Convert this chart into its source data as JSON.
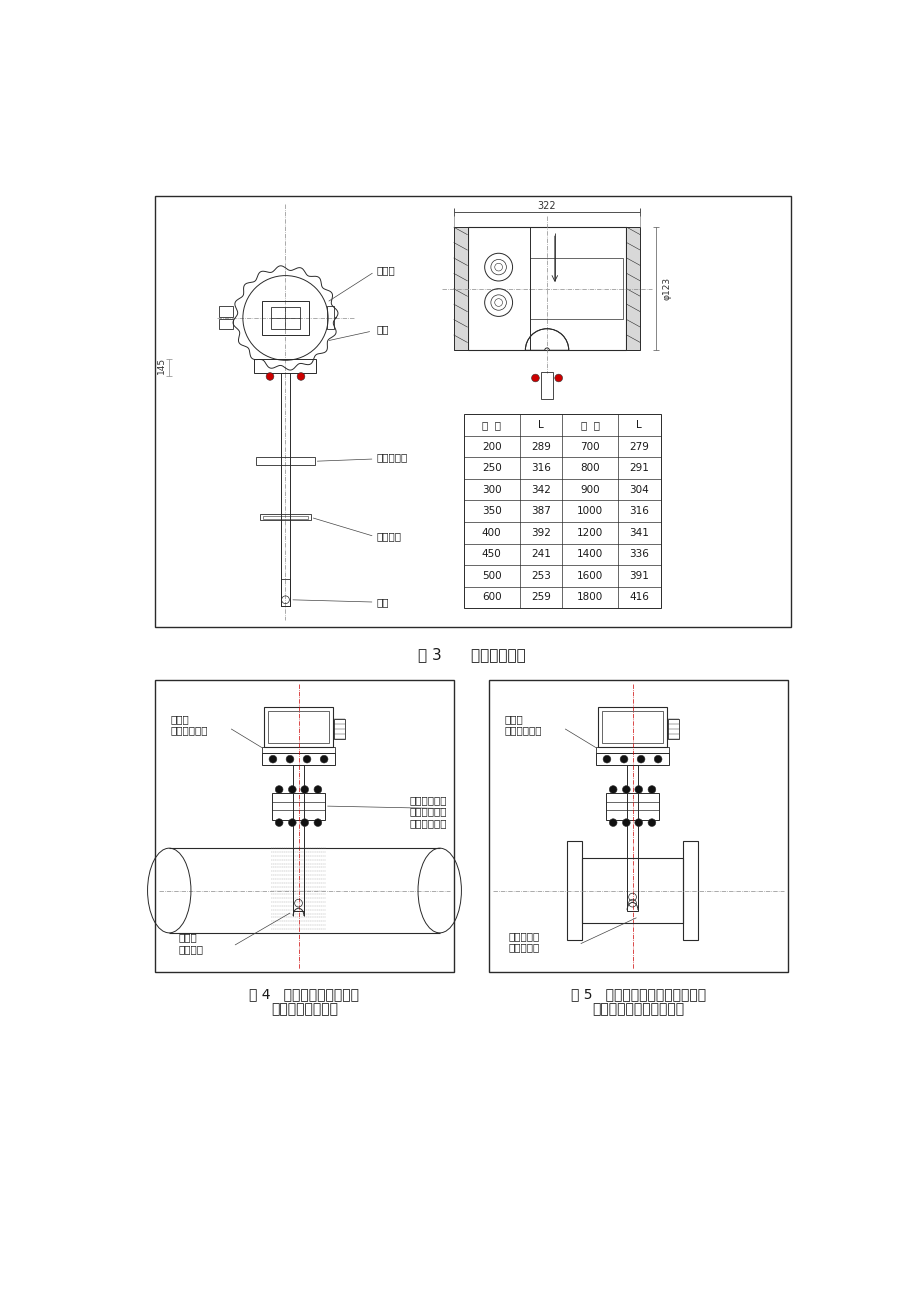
{
  "page_bg": "#ffffff",
  "fig3_caption": "图 3      一体型流量计",
  "fig4_caption_line1": "图 4   传感器（或一体型）",
  "fig4_caption_line2": "安装在用户管道上",
  "fig5_caption_line1": "图 5   传感器（或一体型）安装在",
  "fig5_caption_line2": "生产厂提供的标准短管上",
  "table_data": [
    [
      "口  径",
      "L",
      "口  径",
      "L"
    ],
    [
      "200",
      "289",
      "700",
      "279"
    ],
    [
      "250",
      "316",
      "800",
      "291"
    ],
    [
      "300",
      "342",
      "900",
      "304"
    ],
    [
      "350",
      "387",
      "1000",
      "316"
    ],
    [
      "400",
      "392",
      "1200",
      "341"
    ],
    [
      "450",
      "241",
      "1400",
      "336"
    ],
    [
      "500",
      "253",
      "1600",
      "391"
    ],
    [
      "600",
      "259",
      "1800",
      "416"
    ]
  ],
  "dim_322": "322",
  "dim_145": "145",
  "dim_d123": "φ123",
  "label_jxh": "接线盒",
  "label_mp": "铭牌",
  "label_ljzj": "连接杆组件",
  "label_tzj": "探头组件",
  "label_dj": "电极",
  "label_cq4_sensor": "传感器\n（或一体型）",
  "label_cq4_weld": "焊在用户管道\n上的连接座，\n由生产厂提供",
  "label_cq4_pipe": "用户的\n工艺管道",
  "label_cq5_sensor": "传感器\n（或一体型）",
  "label_cq5_pipe": "生产厂提供\n的标准短管"
}
